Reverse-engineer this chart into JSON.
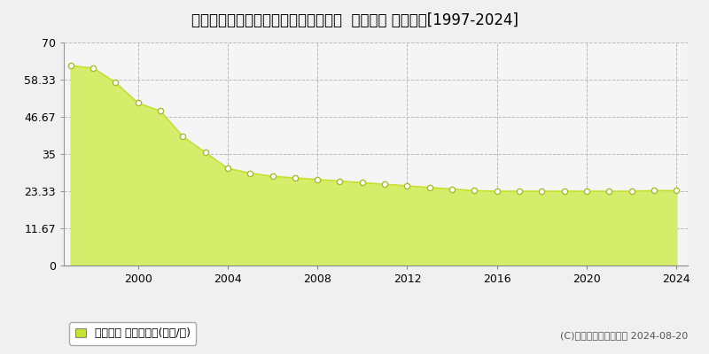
{
  "title": "長野県長野市稲田１丁目２８番５０外  地価公示 地価推移[1997-2024]",
  "years": [
    1997,
    1998,
    1999,
    2000,
    2001,
    2002,
    2003,
    2004,
    2005,
    2006,
    2007,
    2008,
    2009,
    2010,
    2011,
    2012,
    2013,
    2014,
    2015,
    2016,
    2017,
    2018,
    2019,
    2020,
    2021,
    2022,
    2023,
    2024
  ],
  "values": [
    62.7,
    62.0,
    57.5,
    51.0,
    48.5,
    40.5,
    35.5,
    30.5,
    29.0,
    28.0,
    27.5,
    27.0,
    26.5,
    26.0,
    25.5,
    25.0,
    24.5,
    24.0,
    23.5,
    23.3,
    23.3,
    23.3,
    23.3,
    23.3,
    23.3,
    23.3,
    23.5,
    23.5
  ],
  "ylim": [
    0,
    70
  ],
  "yticks": [
    0,
    11.67,
    23.33,
    35,
    46.67,
    58.33,
    70
  ],
  "ytick_labels": [
    "0",
    "11.67",
    "23.33",
    "35",
    "46.67",
    "58.33",
    "70"
  ],
  "xticks": [
    2000,
    2004,
    2008,
    2012,
    2016,
    2020,
    2024
  ],
  "fill_color": "#d4ed6a",
  "line_color": "#c8e030",
  "marker_color": "#ffffff",
  "marker_edge_color": "#aabb30",
  "bg_color": "#f0f0f0",
  "plot_bg_color": "#f5f5f5",
  "grid_color": "#bbbbbb",
  "legend_label": "地価公示 平均坪単価(万円/坪)",
  "legend_marker_color": "#c8e030",
  "copyright_text": "(C)土地価格ドットコム 2024-08-20",
  "title_fontsize": 12,
  "axis_fontsize": 9,
  "legend_fontsize": 9
}
